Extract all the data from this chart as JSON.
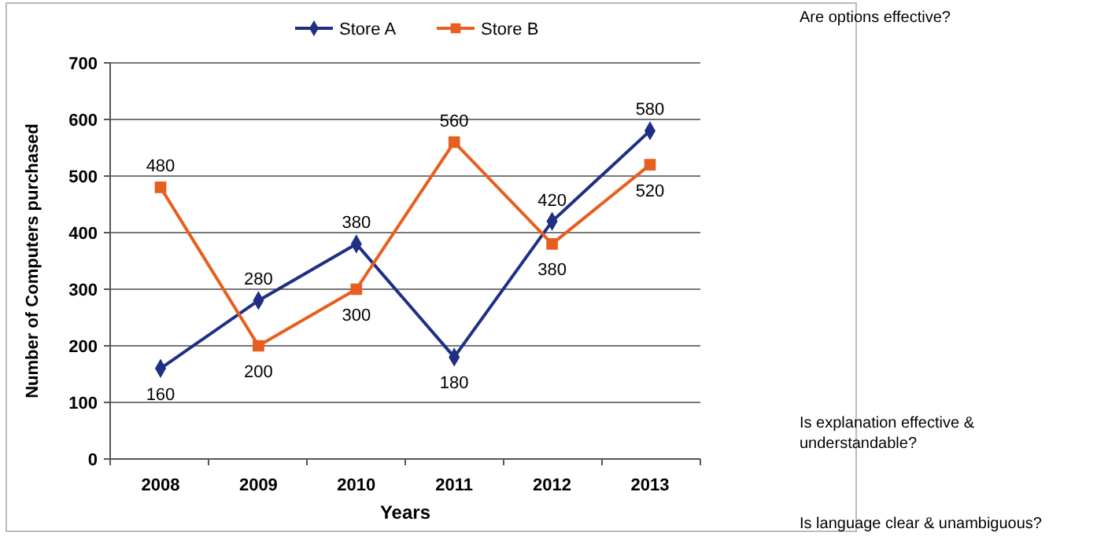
{
  "chart_data": {
    "type": "line",
    "xlabel": "Years",
    "ylabel": "Number of Computers  purchased",
    "categories": [
      "2008",
      "2009",
      "2010",
      "2011",
      "2012",
      "2013"
    ],
    "series": [
      {
        "name": "Store A",
        "color": "#1f2f86",
        "marker": "diamond",
        "values": [
          160,
          280,
          380,
          180,
          420,
          580
        ]
      },
      {
        "name": "Store B",
        "color": "#e65f1e",
        "marker": "square",
        "values": [
          480,
          200,
          300,
          560,
          380,
          520
        ]
      }
    ],
    "ylim": [
      0,
      700
    ],
    "yticks": [
      0,
      100,
      200,
      300,
      400,
      500,
      600,
      700
    ],
    "grid": "y",
    "legend": "top",
    "data_labels": true,
    "annotations": [
      "Are options effective?",
      "Is explanation effective & understandable?",
      "Is language clear & unambiguous?"
    ]
  }
}
